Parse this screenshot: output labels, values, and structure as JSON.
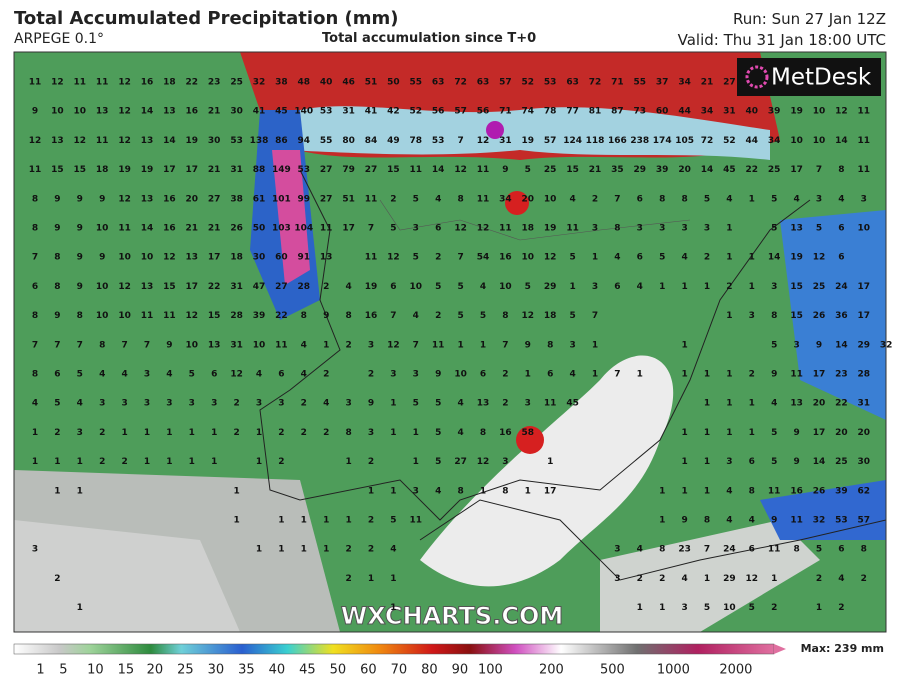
{
  "header": {
    "title": "Total Accumulated Precipitation (mm)",
    "model": "ARPEGE 0.1°",
    "subtitle": "Total accumulation since T+0",
    "run": "Run: Sun 27 Jan 12Z",
    "valid": "Valid: Thu 31 Jan 18:00 UTC"
  },
  "logo": "MetDesk",
  "watermark": "WXCHARTS.COM",
  "grid_values": {
    "rows": [
      [
        11,
        12,
        11,
        11,
        12,
        16,
        18,
        22,
        23,
        25,
        32,
        38,
        48,
        40,
        46,
        51,
        50,
        55,
        63,
        72,
        63,
        57,
        52,
        53,
        63,
        72,
        71,
        55,
        37,
        34,
        21,
        27
      ],
      [
        9,
        10,
        10,
        13,
        12,
        14,
        13,
        16,
        21,
        30,
        41,
        45,
        140,
        53,
        31,
        41,
        42,
        52,
        56,
        57,
        56,
        71,
        74,
        78,
        77,
        81,
        87,
        73,
        60,
        44,
        34,
        31,
        40,
        39,
        19,
        10,
        12,
        11
      ],
      [
        12,
        13,
        12,
        11,
        12,
        13,
        14,
        19,
        30,
        53,
        138,
        86,
        94,
        55,
        80,
        84,
        49,
        78,
        53,
        7,
        12,
        31,
        19,
        57,
        124,
        118,
        166,
        238,
        174,
        105,
        72,
        52,
        44,
        34,
        10,
        10,
        14,
        11
      ],
      [
        11,
        15,
        15,
        18,
        19,
        19,
        17,
        17,
        21,
        31,
        88,
        149,
        53,
        27,
        79,
        27,
        15,
        11,
        14,
        12,
        11,
        9,
        5,
        25,
        15,
        21,
        35,
        29,
        39,
        20,
        14,
        45,
        22,
        25,
        17,
        7,
        8,
        11
      ],
      [
        8,
        9,
        9,
        9,
        12,
        13,
        16,
        20,
        27,
        38,
        61,
        101,
        99,
        27,
        51,
        11,
        2,
        5,
        4,
        8,
        11,
        34,
        20,
        10,
        4,
        2,
        7,
        6,
        8,
        8,
        5,
        4,
        1,
        5,
        4,
        3,
        4,
        3
      ],
      [
        8,
        9,
        9,
        10,
        11,
        14,
        16,
        21,
        21,
        26,
        50,
        103,
        104,
        11,
        17,
        7,
        5,
        3,
        6,
        12,
        12,
        11,
        18,
        19,
        11,
        3,
        8,
        3,
        3,
        3,
        3,
        1,
        null,
        5,
        13,
        5,
        6,
        10
      ],
      [
        7,
        8,
        9,
        9,
        10,
        10,
        12,
        13,
        17,
        18,
        30,
        60,
        91,
        13,
        null,
        11,
        12,
        5,
        2,
        7,
        54,
        16,
        10,
        12,
        5,
        1,
        4,
        6,
        5,
        4,
        2,
        1,
        1,
        14,
        19,
        12,
        6
      ],
      [
        6,
        8,
        9,
        10,
        12,
        13,
        15,
        17,
        22,
        31,
        47,
        27,
        28,
        2,
        4,
        19,
        6,
        10,
        5,
        5,
        4,
        10,
        5,
        29,
        1,
        3,
        6,
        4,
        1,
        1,
        1,
        2,
        1,
        3,
        15,
        25,
        24,
        17
      ],
      [
        8,
        9,
        8,
        10,
        10,
        11,
        11,
        12,
        15,
        28,
        39,
        22,
        8,
        9,
        8,
        16,
        7,
        4,
        2,
        5,
        5,
        8,
        12,
        18,
        5,
        7,
        null,
        null,
        null,
        null,
        null,
        1,
        3,
        8,
        15,
        26,
        36,
        17
      ],
      [
        7,
        7,
        7,
        8,
        7,
        7,
        9,
        10,
        13,
        31,
        10,
        11,
        4,
        1,
        2,
        3,
        12,
        7,
        11,
        1,
        1,
        7,
        9,
        8,
        3,
        1,
        null,
        null,
        null,
        1,
        null,
        null,
        null,
        5,
        3,
        9,
        14,
        29,
        32
      ],
      [
        8,
        6,
        5,
        4,
        4,
        3,
        4,
        5,
        6,
        12,
        4,
        6,
        4,
        2,
        null,
        2,
        3,
        3,
        9,
        10,
        6,
        2,
        1,
        6,
        4,
        1,
        7,
        1,
        null,
        1,
        1,
        1,
        2,
        9,
        11,
        17,
        23,
        28
      ],
      [
        4,
        5,
        4,
        3,
        3,
        3,
        3,
        3,
        3,
        2,
        3,
        3,
        2,
        4,
        3,
        9,
        1,
        5,
        5,
        4,
        13,
        2,
        3,
        11,
        45,
        null,
        null,
        null,
        null,
        null,
        1,
        1,
        1,
        4,
        13,
        20,
        22,
        31
      ],
      [
        1,
        2,
        3,
        2,
        1,
        1,
        1,
        1,
        1,
        2,
        1,
        2,
        2,
        2,
        8,
        3,
        1,
        1,
        5,
        4,
        8,
        16,
        58,
        null,
        null,
        null,
        null,
        null,
        null,
        1,
        1,
        1,
        1,
        5,
        9,
        17,
        20,
        20
      ],
      [
        1,
        1,
        1,
        2,
        2,
        1,
        1,
        1,
        1,
        null,
        1,
        2,
        null,
        null,
        1,
        2,
        null,
        1,
        5,
        27,
        12,
        3,
        null,
        1,
        null,
        null,
        null,
        null,
        null,
        1,
        1,
        3,
        6,
        5,
        9,
        14,
        25,
        30
      ],
      [
        null,
        1,
        1,
        null,
        null,
        null,
        null,
        null,
        null,
        1,
        null,
        null,
        null,
        null,
        null,
        1,
        1,
        3,
        4,
        8,
        1,
        8,
        1,
        17,
        null,
        null,
        null,
        null,
        1,
        1,
        1,
        4,
        8,
        11,
        16,
        26,
        39,
        62
      ],
      [
        null,
        null,
        null,
        null,
        null,
        null,
        null,
        null,
        null,
        1,
        null,
        1,
        1,
        1,
        1,
        2,
        5,
        11,
        null,
        null,
        null,
        null,
        null,
        null,
        null,
        null,
        null,
        null,
        1,
        9,
        8,
        4,
        4,
        9,
        11,
        32,
        53,
        57
      ],
      [
        3,
        null,
        null,
        null,
        null,
        null,
        null,
        null,
        null,
        null,
        1,
        1,
        1,
        1,
        2,
        2,
        4,
        null,
        null,
        null,
        null,
        null,
        null,
        null,
        null,
        null,
        3,
        4,
        8,
        23,
        7,
        24,
        6,
        11,
        8,
        5,
        6,
        8
      ],
      [
        null,
        2,
        null,
        null,
        null,
        null,
        null,
        null,
        null,
        null,
        null,
        null,
        null,
        null,
        2,
        1,
        1,
        null,
        null,
        null,
        null,
        null,
        null,
        null,
        null,
        null,
        3,
        2,
        2,
        4,
        1,
        29,
        12,
        1,
        null,
        2,
        4,
        2
      ],
      [
        null,
        null,
        1,
        null,
        null,
        null,
        null,
        null,
        null,
        null,
        null,
        null,
        null,
        null,
        null,
        null,
        1,
        null,
        null,
        null,
        null,
        null,
        null,
        null,
        null,
        null,
        null,
        1,
        1,
        3,
        5,
        10,
        5,
        2,
        null,
        1,
        2
      ]
    ]
  },
  "colorbar": {
    "labels": [
      1,
      5,
      10,
      15,
      20,
      25,
      30,
      35,
      40,
      45,
      50,
      60,
      70,
      80,
      90,
      100,
      200,
      500,
      1000,
      2000
    ],
    "max_label": "Max: 239 mm"
  }
}
